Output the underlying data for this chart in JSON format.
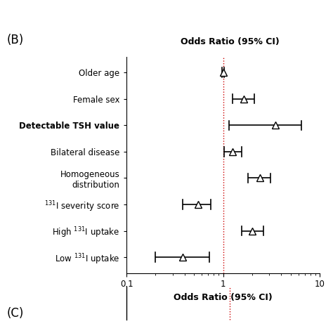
{
  "title_top": "Odds Ratio (95% CI)",
  "panel_label_B": "(B)",
  "panel_label_C": "(C)",
  "xlabel": "Odds Ratio (95% CI)",
  "xlim_log": [
    0.1,
    10
  ],
  "xticks": [
    0.1,
    1,
    10
  ],
  "xticklabels": [
    "0.1",
    "1",
    "10"
  ],
  "ref_line": 1.0,
  "categories": [
    "Older age",
    "Female sex",
    "Detectable TSH value",
    "Bilateral disease",
    "Homogeneous\ndistribution",
    "$^{131}$I severity score",
    "High $^{131}$I uptake",
    "Low $^{131}$I uptake"
  ],
  "bold_flags": [
    false,
    false,
    true,
    false,
    false,
    false,
    false,
    false
  ],
  "or_values": [
    1.0,
    1.65,
    3.5,
    1.25,
    2.4,
    0.55,
    2.0,
    0.38
  ],
  "ci_low": [
    0.98,
    1.25,
    1.15,
    1.02,
    1.8,
    0.38,
    1.55,
    0.2
  ],
  "ci_high": [
    1.02,
    2.1,
    6.5,
    1.55,
    3.1,
    0.75,
    2.6,
    0.72
  ],
  "marker": "^",
  "marker_size": 7,
  "marker_color": "white",
  "marker_edge_color": "black",
  "line_color": "black",
  "ref_line_color": "#cc0000",
  "background_color": "white",
  "fig_width": 4.74,
  "fig_height": 4.74,
  "dpi": 100
}
